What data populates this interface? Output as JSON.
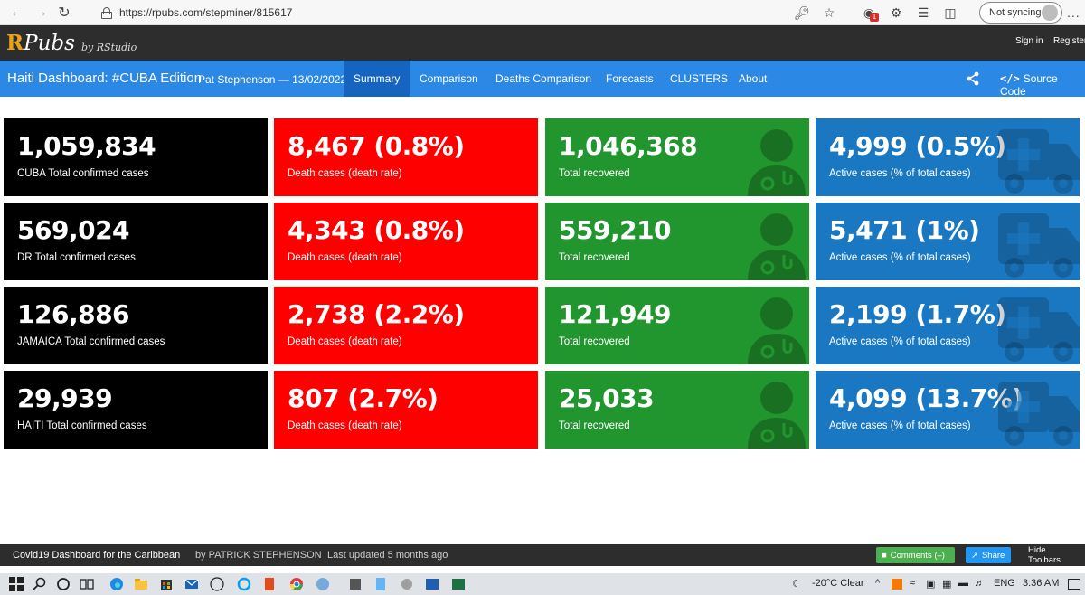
{
  "browser": {
    "url": "https://rpubs.com/stepminer/815617",
    "sync_label": "Not syncing",
    "more_label": "...",
    "badge": "1"
  },
  "rpubs": {
    "logo_r": "R",
    "logo_rest": "Pubs",
    "by": "by RStudio",
    "signin": "Sign in",
    "register": "Register"
  },
  "dashboard": {
    "title": "Haiti Dashboard: #CUBA Edition",
    "author": "Pat Stephenson — 13/02/2022",
    "tabs": [
      {
        "label": "Summary",
        "active": true
      },
      {
        "label": "Comparison"
      },
      {
        "label": "Deaths Comparison"
      },
      {
        "label": "Forecasts"
      },
      {
        "label": "CLUSTERS"
      },
      {
        "label": "About"
      }
    ],
    "source_code_symbol": "</>",
    "source_code": "Source Code"
  },
  "rows": [
    {
      "confirmed": {
        "value": "1,059,834",
        "caption": "CUBA Total confirmed cases"
      },
      "deaths": {
        "value": "8,467 (0.8%)",
        "caption": "Death cases (death rate)"
      },
      "recovered": {
        "value": "1,046,368",
        "caption": "Total recovered"
      },
      "active": {
        "value": "4,999 (0.5%)",
        "caption": "Active cases (% of total cases)"
      }
    },
    {
      "confirmed": {
        "value": "569,024",
        "caption": "DR Total confirmed cases"
      },
      "deaths": {
        "value": "4,343 (0.8%)",
        "caption": "Death cases (death rate)"
      },
      "recovered": {
        "value": "559,210",
        "caption": "Total recovered"
      },
      "active": {
        "value": "5,471 (1%)",
        "caption": "Active cases (% of total cases)"
      }
    },
    {
      "confirmed": {
        "value": "126,886",
        "caption": "JAMAICA Total confirmed cases"
      },
      "deaths": {
        "value": "2,738 (2.2%)",
        "caption": "Death cases (death rate)"
      },
      "recovered": {
        "value": "121,949",
        "caption": "Total recovered"
      },
      "active": {
        "value": "2,199 (1.7%)",
        "caption": "Active cases (% of total cases)"
      }
    },
    {
      "confirmed": {
        "value": "29,939",
        "caption": "HAITI Total confirmed cases"
      },
      "deaths": {
        "value": "807 (2.7%)",
        "caption": "Death cases (death rate)"
      },
      "recovered": {
        "value": "25,033",
        "caption": "Total recovered"
      },
      "active": {
        "value": "4,099 (13.7%)",
        "caption": "Active cases (% of total cases)"
      }
    }
  ],
  "footer": {
    "title": "Covid19 Dashboard for the Caribbean",
    "by": "by PATRICK STEPHENSON",
    "updated": "Last updated 5 months ago",
    "comments": "Comments (–)",
    "share": "Share",
    "hide": "Hide Toolbars"
  },
  "taskbar": {
    "weather": "-20°C  Clear",
    "lang": "ENG",
    "time": "3:36 AM"
  },
  "colors": {
    "confirmed": "#000000",
    "deaths": "#ff0000",
    "recovered": "#22962e",
    "active": "#1a78c2",
    "navbar": "#2c88e5",
    "active_tab": "#1565c0"
  },
  "icons": {
    "recovered": "user-md-icon",
    "active": "ambulance-icon"
  }
}
